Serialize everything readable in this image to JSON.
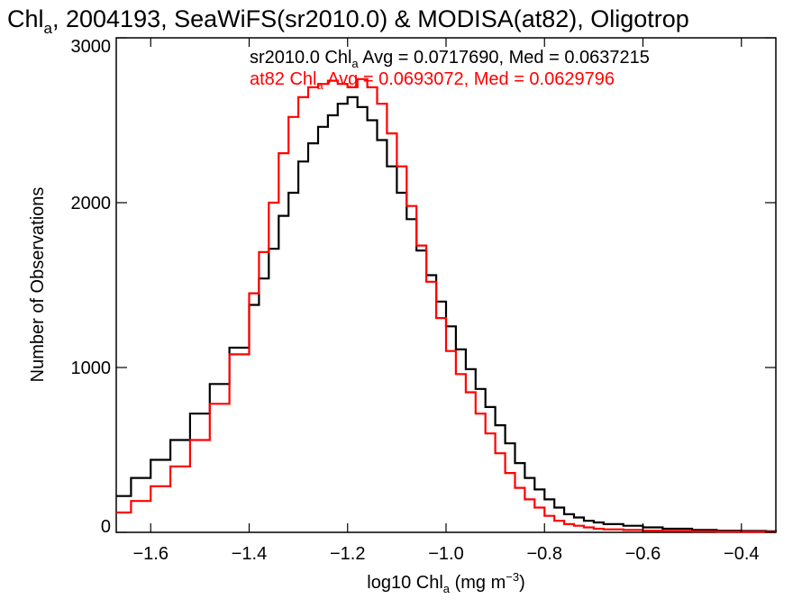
{
  "chart_data": {
    "type": "line",
    "step": true,
    "title": "Chl",
    "title_sub": "a",
    "title_rest": ", 2004193, SeaWiFS(sr2010.0) & MODISA(at82), Oligotrop",
    "xlabel_pre": "log10 Chl",
    "xlabel_sub": "a",
    "xlabel_mid": " (mg m",
    "xlabel_sup": "−3",
    "xlabel_post": ")",
    "ylabel": "Number of Observations",
    "xlim": [
      -1.67,
      -0.33
    ],
    "ylim": [
      0,
      3000
    ],
    "xticks": [
      -1.6,
      -1.4,
      -1.2,
      -1.0,
      -0.8,
      -0.6,
      -0.4
    ],
    "xtick_labels": [
      "−1.6",
      "−1.4",
      "−1.2",
      "−1.0",
      "−0.8",
      "−0.6",
      "−0.4"
    ],
    "yticks": [
      0,
      1000,
      2000,
      3000
    ],
    "ytick_labels": [
      "0",
      "1000",
      "2000",
      "3000"
    ],
    "grid": false,
    "series": [
      {
        "name": "sr2010.0",
        "color": "#000000",
        "legend_pre": "sr2010.0 Chl",
        "legend_sub": "a",
        "legend_post": " Avg = 0.0717690, Med = 0.0637215",
        "x": [
          -1.67,
          -1.64,
          -1.6,
          -1.56,
          -1.52,
          -1.48,
          -1.44,
          -1.4,
          -1.38,
          -1.36,
          -1.34,
          -1.32,
          -1.3,
          -1.28,
          -1.26,
          -1.24,
          -1.22,
          -1.2,
          -1.18,
          -1.16,
          -1.14,
          -1.12,
          -1.1,
          -1.08,
          -1.06,
          -1.04,
          -1.02,
          -1.0,
          -0.98,
          -0.96,
          -0.94,
          -0.92,
          -0.9,
          -0.88,
          -0.86,
          -0.84,
          -0.82,
          -0.8,
          -0.78,
          -0.76,
          -0.74,
          -0.72,
          -0.7,
          -0.68,
          -0.64,
          -0.6,
          -0.56,
          -0.5,
          -0.45,
          -0.4,
          -0.35,
          -0.33
        ],
        "y": [
          220,
          330,
          440,
          560,
          720,
          900,
          1120,
          1380,
          1540,
          1720,
          1920,
          2060,
          2250,
          2360,
          2460,
          2530,
          2600,
          2640,
          2580,
          2500,
          2380,
          2220,
          2060,
          1900,
          1710,
          1560,
          1400,
          1250,
          1110,
          990,
          870,
          760,
          650,
          540,
          420,
          330,
          260,
          200,
          150,
          110,
          90,
          70,
          60,
          50,
          40,
          30,
          22,
          15,
          10,
          8,
          6,
          5
        ]
      },
      {
        "name": "at82",
        "color": "#ff0000",
        "legend_pre": "at82 Chl",
        "legend_sub": "a",
        "legend_post": " Avg = 0.0693072, Med = 0.0629796",
        "x": [
          -1.67,
          -1.64,
          -1.6,
          -1.56,
          -1.52,
          -1.48,
          -1.44,
          -1.4,
          -1.38,
          -1.36,
          -1.34,
          -1.32,
          -1.3,
          -1.28,
          -1.26,
          -1.24,
          -1.22,
          -1.2,
          -1.18,
          -1.16,
          -1.14,
          -1.12,
          -1.1,
          -1.08,
          -1.06,
          -1.04,
          -1.02,
          -1.0,
          -0.98,
          -0.96,
          -0.94,
          -0.92,
          -0.9,
          -0.88,
          -0.86,
          -0.84,
          -0.82,
          -0.8,
          -0.78,
          -0.76,
          -0.74,
          -0.72,
          -0.7,
          -0.68,
          -0.64,
          -0.6,
          -0.56,
          -0.5,
          -0.45,
          -0.4,
          -0.35,
          -0.33
        ],
        "y": [
          120,
          190,
          280,
          400,
          560,
          780,
          1080,
          1450,
          1700,
          2000,
          2300,
          2520,
          2640,
          2700,
          2720,
          2740,
          2720,
          2700,
          2750,
          2700,
          2600,
          2420,
          2220,
          1980,
          1740,
          1520,
          1300,
          1100,
          960,
          850,
          720,
          600,
          480,
          360,
          270,
          200,
          150,
          100,
          70,
          50,
          40,
          30,
          22,
          18,
          14,
          10,
          8,
          6,
          4,
          3,
          2,
          2
        ]
      }
    ]
  }
}
